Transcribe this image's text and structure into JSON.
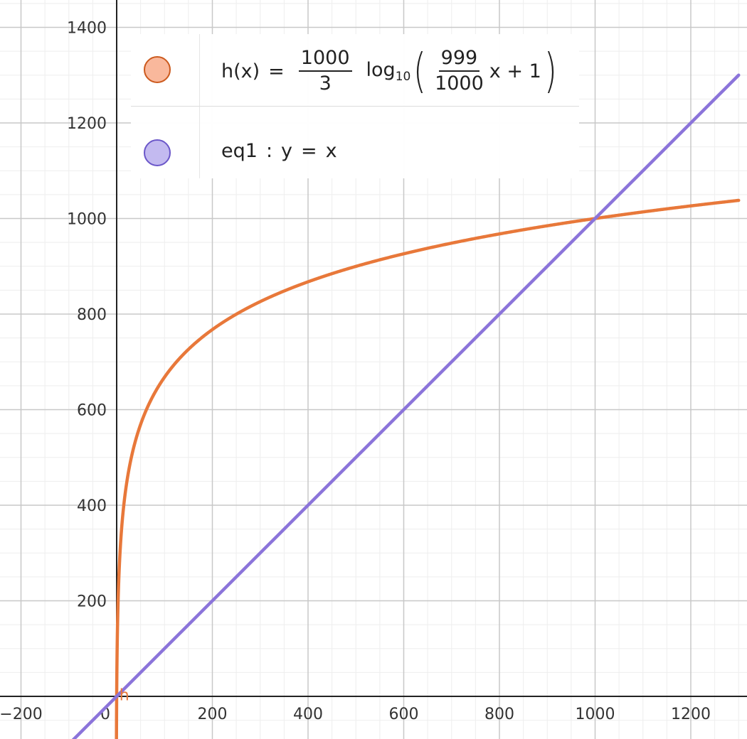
{
  "chart_data": {
    "type": "line",
    "title": "",
    "xlabel": "",
    "ylabel": "",
    "xlim": [
      -250,
      1300
    ],
    "ylim": [
      -85,
      1460
    ],
    "x_ticks": [
      -200,
      0,
      200,
      400,
      600,
      800,
      1000,
      1200
    ],
    "x_tick_labels": [
      "−200",
      "0",
      "200",
      "400",
      "600",
      "800",
      "1000",
      "1200"
    ],
    "y_ticks": [
      200,
      400,
      600,
      800,
      1000,
      1200,
      1400
    ],
    "y_tick_labels": [
      "200",
      "400",
      "600",
      "800",
      "1000",
      "1200",
      "1400"
    ],
    "major_grid_step": 200,
    "minor_grid_step": 50,
    "grid": true,
    "legend_position": "top-left",
    "series": [
      {
        "name": "h",
        "color": "#e8783a",
        "marker_fill": "#f9b89c",
        "marker_border": "#cc5a1e",
        "function": "h(x) = (1000/3) log10((999/1000) x + 1)",
        "x": [
          0,
          1,
          5,
          10,
          20,
          50,
          100,
          200,
          400,
          600,
          800,
          1000,
          1200,
          1300
        ],
        "y": [
          0,
          100.3,
          259.1,
          346.8,
          440.4,
          569.3,
          667.5,
          767.7,
          868.0,
          927.0,
          968.8,
          1000.0,
          1026.1,
          1038.0
        ]
      },
      {
        "name": "eq1",
        "color": "#8b74da",
        "marker_fill": "#c3baf0",
        "marker_border": "#6b57c9",
        "function": "y = x",
        "x": [
          -100,
          1300
        ],
        "y": [
          -100,
          1300
        ]
      }
    ],
    "annotations": [
      {
        "text": "h",
        "x": 10,
        "y": -5,
        "color": "#e8783a"
      }
    ]
  },
  "legend": {
    "h": {
      "name": "h(x)",
      "equals": "=",
      "coef_num": "1000",
      "coef_den": "3",
      "log_base": "log",
      "log_sub": "10",
      "open_paren": "(",
      "inner_num": "999",
      "inner_den": "1000",
      "inner_rest": "x + 1",
      "close_paren": ")"
    },
    "eq1": {
      "name": "eq1",
      "colon": ":",
      "lhs": "y",
      "equals": "=",
      "rhs": "x"
    }
  }
}
